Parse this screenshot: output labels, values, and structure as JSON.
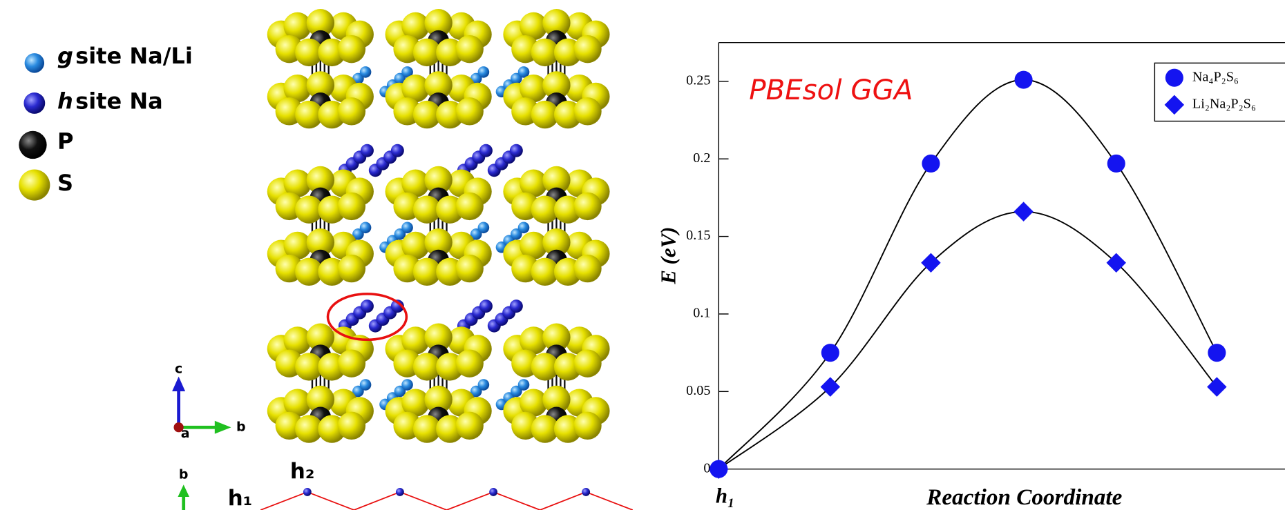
{
  "legend_key": {
    "items": [
      {
        "symbol": "g",
        "label": "site Na/Li"
      },
      {
        "symbol": "h",
        "label": "site Na"
      },
      {
        "label": "P"
      },
      {
        "label": "S"
      }
    ]
  },
  "structure": {
    "axis_labels": [
      "c",
      "b",
      "a"
    ],
    "projection_axis_label": "b",
    "site_labels": [
      "h₁",
      "h₂"
    ]
  },
  "chart_data": {
    "type": "line",
    "annotation": "PBEsol GGA",
    "x_label": "Reaction Coordinate",
    "y_label": "E (eV)",
    "x_tick_label": "h₁",
    "x": [
      0,
      0.183,
      0.348,
      0.5,
      0.652,
      0.817
    ],
    "xlim": [
      0,
      1
    ],
    "ylim": [
      0,
      0.275
    ],
    "yticks": [
      0,
      0.05,
      0.1,
      0.15,
      0.2,
      0.25
    ],
    "series": [
      {
        "name": "Na₄P₂S₆",
        "color": "#1414f0",
        "marker": "circle",
        "values": [
          0,
          0.075,
          0.197,
          0.251,
          0.197,
          0.075
        ]
      },
      {
        "name": "Li₂Na₂P₂S₆",
        "color": "#1414f0",
        "marker": "diamond",
        "values": [
          0,
          0.053,
          0.133,
          0.166,
          0.133,
          0.053
        ]
      }
    ],
    "line_color": "#000000"
  }
}
